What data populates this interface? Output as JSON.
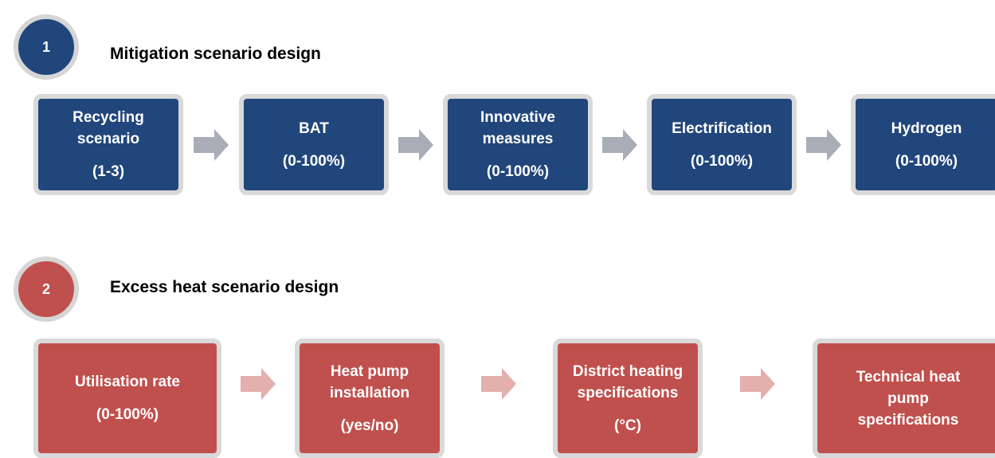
{
  "sections": [
    {
      "number": "1",
      "title": "Mitigation scenario design",
      "theme": "blue",
      "boxes": [
        {
          "label": [
            "Recycling",
            "scenario"
          ],
          "range": "(1-3)"
        },
        {
          "label": [
            "BAT"
          ],
          "range": "(0-100%)"
        },
        {
          "label": [
            "Innovative",
            "measures"
          ],
          "range": "(0-100%)"
        },
        {
          "label": [
            "Electrification"
          ],
          "range": "(0-100%)"
        },
        {
          "label": [
            "Hydrogen"
          ],
          "range": "(0-100%)"
        }
      ]
    },
    {
      "number": "2",
      "title": "Excess heat scenario design",
      "theme": "red",
      "boxes": [
        {
          "label": [
            "Utilisation rate"
          ],
          "range": "(0-100%)"
        },
        {
          "label": [
            "Heat pump",
            "installation"
          ],
          "range": "(yes/no)"
        },
        {
          "label": [
            "District heating",
            "specifications"
          ],
          "range": "(°C)"
        },
        {
          "label": [
            "Technical heat",
            "pump",
            "specifications"
          ]
        }
      ]
    }
  ]
}
